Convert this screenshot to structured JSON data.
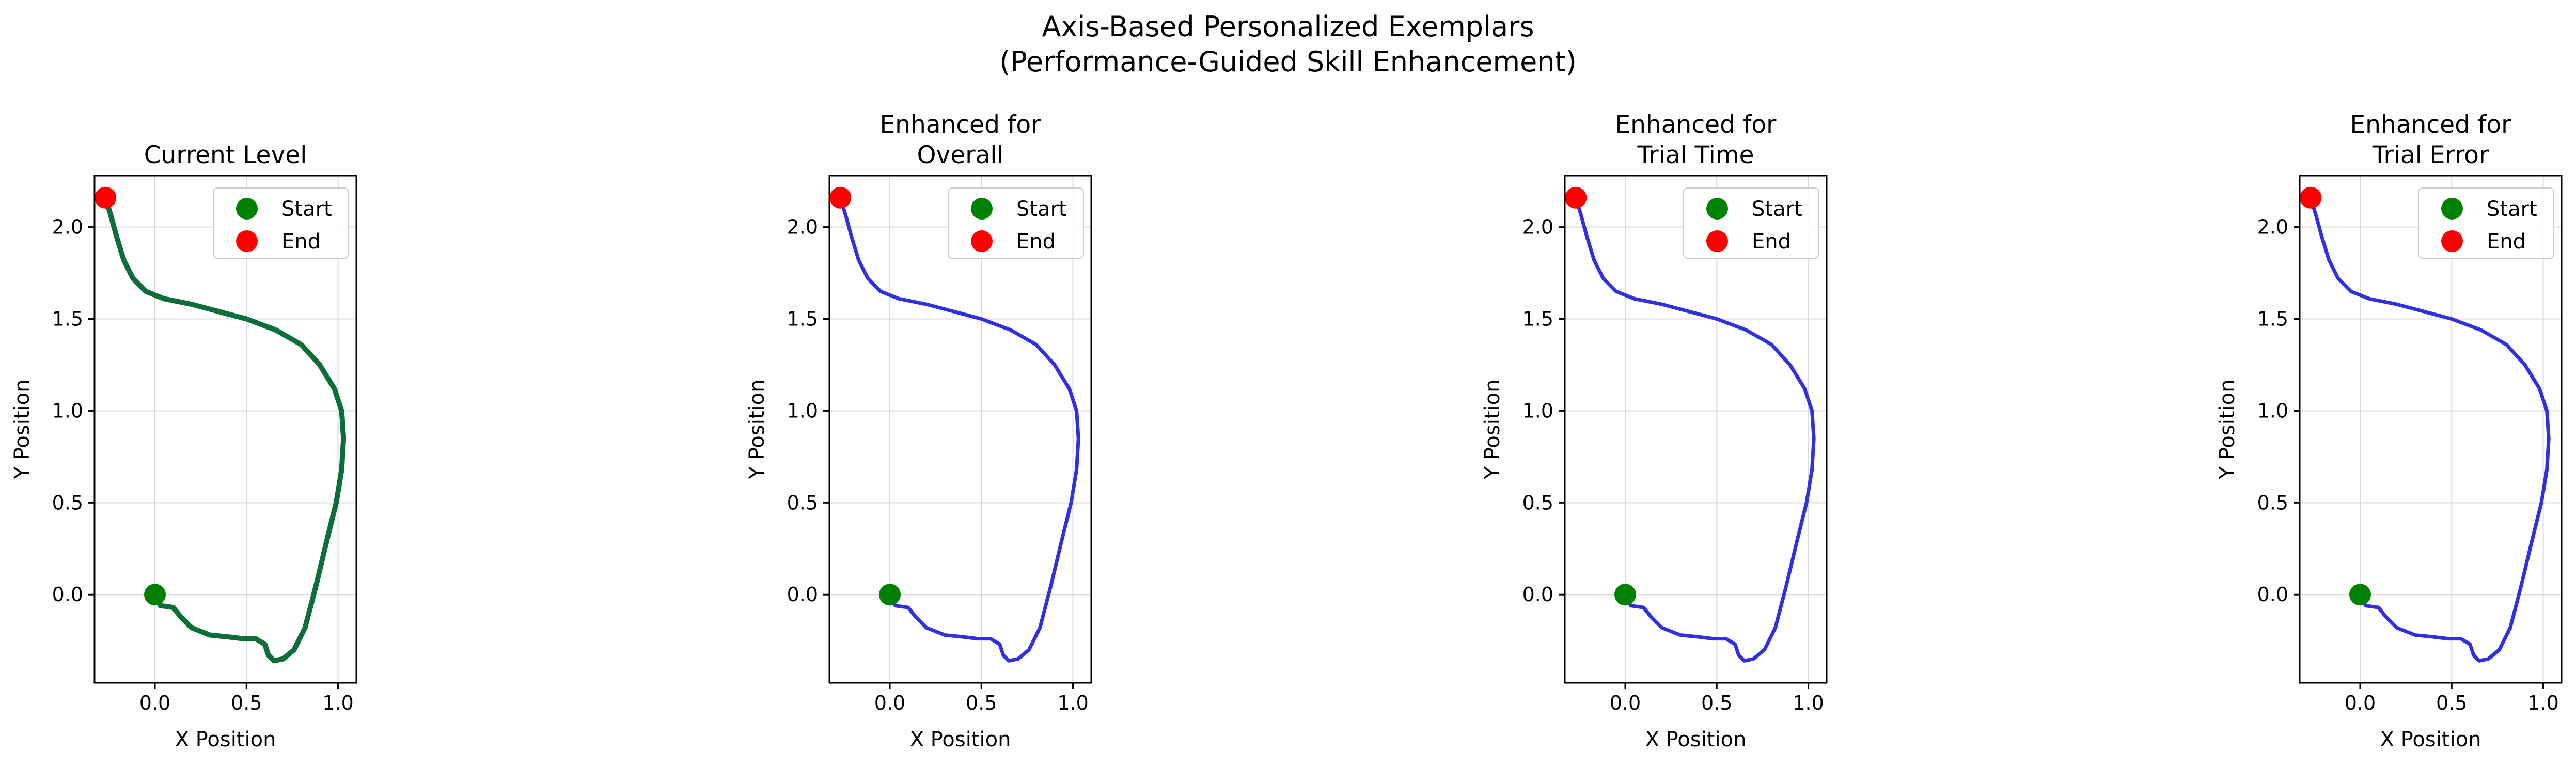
{
  "figure": {
    "title_line1": "Axis-Based Personalized Exemplars",
    "title_line2": "(Performance-Guided Skill Enhancement)"
  },
  "chart_data": [
    {
      "type": "line",
      "title": [
        "Current Level"
      ],
      "xlabel": "X Position",
      "ylabel": "Y Position",
      "xlim": [
        -0.33,
        1.1
      ],
      "ylim": [
        -0.48,
        2.28
      ],
      "xticks": [
        "0.0",
        "0.5",
        "1.0"
      ],
      "yticks": [
        "0.0",
        "0.5",
        "1.0",
        "1.5",
        "2.0"
      ],
      "grid": true,
      "legend_position": "top-right",
      "line_color": "#0e6e3a",
      "series": [
        {
          "x": [
            0.0,
            0.03,
            0.1,
            0.14,
            0.2,
            0.3,
            0.4,
            0.48,
            0.55,
            0.6,
            0.62,
            0.65,
            0.7,
            0.76,
            0.82,
            0.88,
            0.94,
            0.99,
            1.02,
            1.03,
            1.02,
            0.98,
            0.9,
            0.8,
            0.66,
            0.5,
            0.35,
            0.2,
            0.05,
            -0.05,
            -0.12,
            -0.17,
            -0.21,
            -0.24,
            -0.27
          ],
          "y": [
            0.0,
            -0.06,
            -0.07,
            -0.12,
            -0.18,
            -0.22,
            -0.23,
            -0.24,
            -0.24,
            -0.27,
            -0.33,
            -0.36,
            -0.35,
            -0.3,
            -0.18,
            0.05,
            0.3,
            0.5,
            0.68,
            0.85,
            1.0,
            1.12,
            1.25,
            1.36,
            1.44,
            1.5,
            1.54,
            1.58,
            1.61,
            1.65,
            1.72,
            1.82,
            1.95,
            2.06,
            2.16
          ]
        }
      ],
      "markers": [
        {
          "label": "Start",
          "x": 0.0,
          "y": 0.0,
          "color": "#008000"
        },
        {
          "label": "End",
          "x": -0.27,
          "y": 2.16,
          "color": "#ff0000"
        }
      ]
    },
    {
      "type": "line",
      "title": [
        "Enhanced for",
        "Overall"
      ],
      "xlabel": "X Position",
      "ylabel": "Y Position",
      "xlim": [
        -0.33,
        1.1
      ],
      "ylim": [
        -0.48,
        2.28
      ],
      "xticks": [
        "0.0",
        "0.5",
        "1.0"
      ],
      "yticks": [
        "0.0",
        "0.5",
        "1.0",
        "1.5",
        "2.0"
      ],
      "grid": true,
      "legend_position": "top-right",
      "line_color": "#3030e0",
      "series": [
        {
          "x": [
            0.0,
            0.03,
            0.1,
            0.14,
            0.2,
            0.3,
            0.4,
            0.48,
            0.55,
            0.6,
            0.62,
            0.65,
            0.7,
            0.76,
            0.82,
            0.88,
            0.94,
            0.99,
            1.02,
            1.03,
            1.02,
            0.98,
            0.9,
            0.8,
            0.66,
            0.5,
            0.35,
            0.2,
            0.05,
            -0.05,
            -0.12,
            -0.17,
            -0.21,
            -0.24,
            -0.27
          ],
          "y": [
            0.0,
            -0.06,
            -0.07,
            -0.12,
            -0.18,
            -0.22,
            -0.23,
            -0.24,
            -0.24,
            -0.27,
            -0.33,
            -0.36,
            -0.35,
            -0.3,
            -0.18,
            0.05,
            0.3,
            0.5,
            0.68,
            0.85,
            1.0,
            1.12,
            1.25,
            1.36,
            1.44,
            1.5,
            1.54,
            1.58,
            1.61,
            1.65,
            1.72,
            1.82,
            1.95,
            2.06,
            2.16
          ]
        }
      ],
      "markers": [
        {
          "label": "Start",
          "x": 0.0,
          "y": 0.0,
          "color": "#008000"
        },
        {
          "label": "End",
          "x": -0.27,
          "y": 2.16,
          "color": "#ff0000"
        }
      ]
    },
    {
      "type": "line",
      "title": [
        "Enhanced for",
        "Trial Time"
      ],
      "xlabel": "X Position",
      "ylabel": "Y Position",
      "xlim": [
        -0.33,
        1.1
      ],
      "ylim": [
        -0.48,
        2.28
      ],
      "xticks": [
        "0.0",
        "0.5",
        "1.0"
      ],
      "yticks": [
        "0.0",
        "0.5",
        "1.0",
        "1.5",
        "2.0"
      ],
      "grid": true,
      "legend_position": "top-right",
      "line_color": "#3030e0",
      "series": [
        {
          "x": [
            0.0,
            0.03,
            0.1,
            0.14,
            0.2,
            0.3,
            0.4,
            0.48,
            0.55,
            0.6,
            0.62,
            0.65,
            0.7,
            0.76,
            0.82,
            0.88,
            0.94,
            0.99,
            1.02,
            1.03,
            1.02,
            0.98,
            0.9,
            0.8,
            0.66,
            0.5,
            0.35,
            0.2,
            0.05,
            -0.05,
            -0.12,
            -0.17,
            -0.21,
            -0.24,
            -0.27
          ],
          "y": [
            0.0,
            -0.06,
            -0.07,
            -0.12,
            -0.18,
            -0.22,
            -0.23,
            -0.24,
            -0.24,
            -0.27,
            -0.33,
            -0.36,
            -0.35,
            -0.3,
            -0.18,
            0.05,
            0.3,
            0.5,
            0.68,
            0.85,
            1.0,
            1.12,
            1.25,
            1.36,
            1.44,
            1.5,
            1.54,
            1.58,
            1.61,
            1.65,
            1.72,
            1.82,
            1.95,
            2.06,
            2.16
          ]
        }
      ],
      "markers": [
        {
          "label": "Start",
          "x": 0.0,
          "y": 0.0,
          "color": "#008000"
        },
        {
          "label": "End",
          "x": -0.27,
          "y": 2.16,
          "color": "#ff0000"
        }
      ]
    },
    {
      "type": "line",
      "title": [
        "Enhanced for",
        "Trial Error"
      ],
      "xlabel": "X Position",
      "ylabel": "Y Position",
      "xlim": [
        -0.33,
        1.1
      ],
      "ylim": [
        -0.48,
        2.28
      ],
      "xticks": [
        "0.0",
        "0.5",
        "1.0"
      ],
      "yticks": [
        "0.0",
        "0.5",
        "1.0",
        "1.5",
        "2.0"
      ],
      "grid": true,
      "legend_position": "top-right",
      "line_color": "#3030e0",
      "series": [
        {
          "x": [
            0.0,
            0.03,
            0.1,
            0.14,
            0.2,
            0.3,
            0.4,
            0.48,
            0.55,
            0.6,
            0.62,
            0.65,
            0.7,
            0.76,
            0.82,
            0.88,
            0.94,
            0.99,
            1.02,
            1.03,
            1.02,
            0.98,
            0.9,
            0.8,
            0.66,
            0.5,
            0.35,
            0.2,
            0.05,
            -0.05,
            -0.12,
            -0.17,
            -0.21,
            -0.24,
            -0.27
          ],
          "y": [
            0.0,
            -0.06,
            -0.07,
            -0.12,
            -0.18,
            -0.22,
            -0.23,
            -0.24,
            -0.24,
            -0.27,
            -0.33,
            -0.36,
            -0.35,
            -0.3,
            -0.18,
            0.05,
            0.3,
            0.5,
            0.68,
            0.85,
            1.0,
            1.12,
            1.25,
            1.36,
            1.44,
            1.5,
            1.54,
            1.58,
            1.61,
            1.65,
            1.72,
            1.82,
            1.95,
            2.06,
            2.16
          ]
        }
      ],
      "markers": [
        {
          "label": "Start",
          "x": 0.0,
          "y": 0.0,
          "color": "#008000"
        },
        {
          "label": "End",
          "x": -0.27,
          "y": 2.16,
          "color": "#ff0000"
        }
      ]
    }
  ]
}
